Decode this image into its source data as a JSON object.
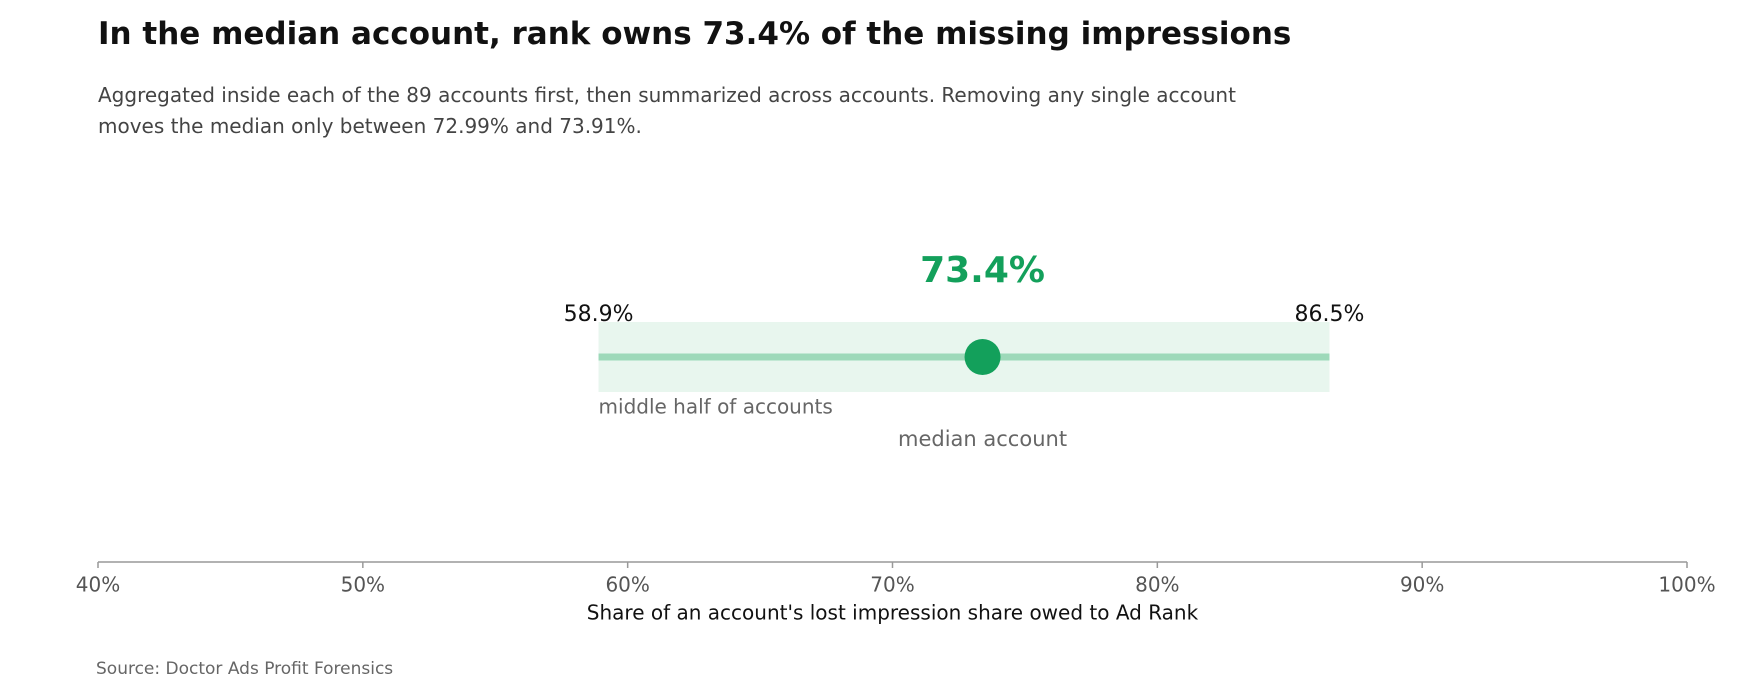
{
  "chart_data": {
    "type": "range",
    "title": "In the median account, rank owns 73.4% of the missing impressions",
    "subtitle": "Aggregated inside each of the 89 accounts first, then summarized across accounts. Removing any single account moves the median only between 72.99% and 73.91%.",
    "x_label": "Share of an account's lost impression share owed to Ad Rank",
    "source": "Source: Doctor Ads Profit Forensics",
    "xlim": [
      40,
      100
    ],
    "xticks": [
      {
        "value": 40,
        "label": "40%"
      },
      {
        "value": 50,
        "label": "50%"
      },
      {
        "value": 60,
        "label": "60%"
      },
      {
        "value": 70,
        "label": "70%"
      },
      {
        "value": 80,
        "label": "80%"
      },
      {
        "value": 90,
        "label": "90%"
      },
      {
        "value": 100,
        "label": "100%"
      }
    ],
    "range": {
      "name": "middle half of accounts",
      "values": [
        58.9,
        86.5
      ],
      "value_labels": [
        "58.9%",
        "86.5%"
      ],
      "color": "#e8f6ee",
      "line_color": "#9dd9b9"
    },
    "median": {
      "name": "median account",
      "value": 73.4,
      "value_label": "73.4%",
      "color": "#13a05b"
    }
  }
}
